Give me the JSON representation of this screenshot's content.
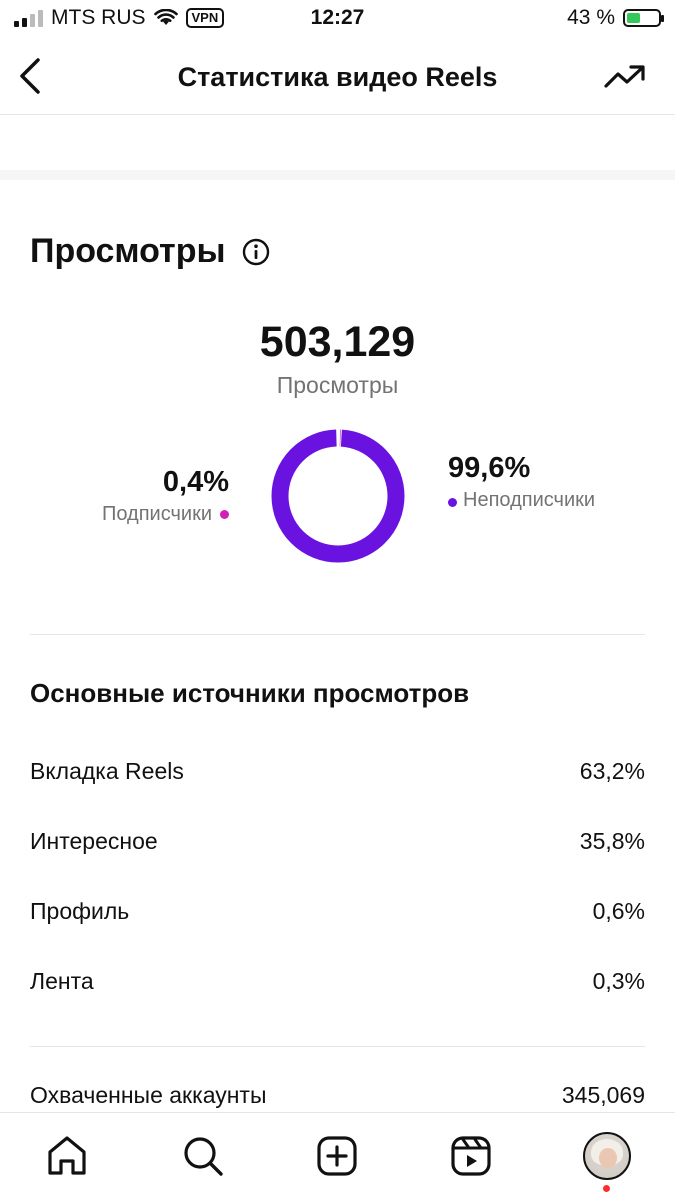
{
  "status_bar": {
    "carrier": "MTS RUS",
    "vpn": "VPN",
    "time": "12:27",
    "battery": "43 %",
    "battery_level": 0.43
  },
  "header": {
    "title": "Статистика видео Reels"
  },
  "views": {
    "title": "Просмотры",
    "total": "503,129",
    "total_label": "Просмотры",
    "followers_pct": "0,4%",
    "followers_label": "Подписчики",
    "non_followers_pct": "99,6%",
    "non_followers_label": "Неподписчики",
    "colors": {
      "followers": "#d21fb6",
      "non_followers": "#6a12e0"
    }
  },
  "chart_data": {
    "type": "pie",
    "categories": [
      "Подписчики",
      "Неподписчики"
    ],
    "values": [
      0.4,
      99.6
    ]
  },
  "sources": {
    "title": "Основные источники просмотров",
    "items": [
      {
        "label": "Вкладка Reels",
        "value": "63,2%"
      },
      {
        "label": "Интересное",
        "value": "35,8%"
      },
      {
        "label": "Профиль",
        "value": "0,6%"
      },
      {
        "label": "Лента",
        "value": "0,3%"
      }
    ]
  },
  "reach": {
    "label": "Охваченные аккаунты",
    "value": "345,069"
  },
  "nav": {
    "items": [
      "home-icon",
      "search-icon",
      "create-icon",
      "reels-icon",
      "profile-avatar"
    ]
  }
}
